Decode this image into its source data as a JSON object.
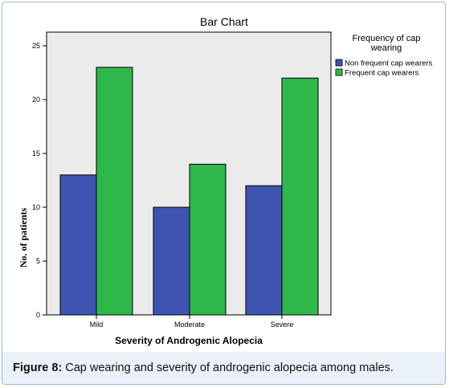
{
  "caption": {
    "label": "Figure 8:",
    "text": " Cap wearing and severity of androgenic alopecia among males."
  },
  "chart_data": {
    "type": "bar",
    "title": "Bar Chart",
    "xlabel": "Severity of Androgenic Alopecia",
    "ylabel": "No. of patients",
    "categories": [
      "Mild",
      "Moderate",
      "Severe"
    ],
    "series": [
      {
        "name": "Non frequent cap wearers",
        "values": [
          13,
          10,
          12
        ],
        "color": "#3e54b0"
      },
      {
        "name": "Frequent cap wearers",
        "values": [
          23,
          14,
          22
        ],
        "color": "#2fb84a"
      }
    ],
    "ylim": [
      0,
      25
    ],
    "yticks": [
      0,
      5,
      10,
      15,
      20,
      25
    ],
    "legend_title_lines": [
      "Frequency of cap",
      "wearing"
    ],
    "legend_position": "right",
    "plot_background": "#ebebeb",
    "grid": false
  }
}
